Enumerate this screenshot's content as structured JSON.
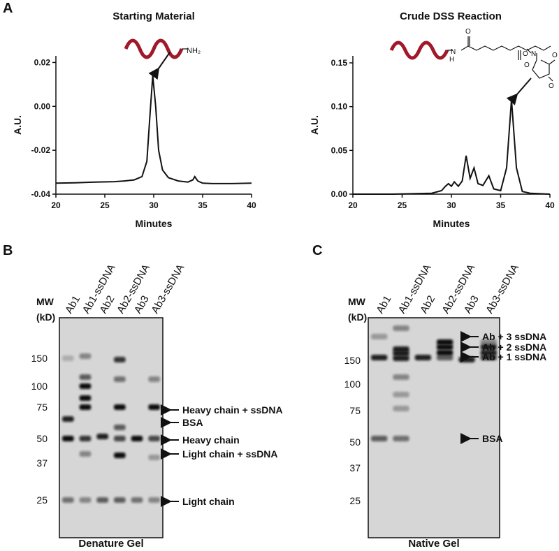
{
  "panels": {
    "a": "A",
    "b": "B",
    "c": "C"
  },
  "chart_data": [
    {
      "type": "line",
      "title": "Starting Material",
      "x_label": "Minutes",
      "y_label": "A.U.",
      "molecule_label": "NH₂",
      "x": [
        20,
        22,
        24,
        26,
        27,
        28,
        28.8,
        29.3,
        29.6,
        29.9,
        30.2,
        30.5,
        30.9,
        31.5,
        32.5,
        33.5,
        34,
        34.2,
        34.5,
        35,
        36,
        38,
        40
      ],
      "values": [
        -0.035,
        -0.0348,
        -0.0345,
        -0.0343,
        -0.034,
        -0.0335,
        -0.032,
        -0.025,
        -0.005,
        0.014,
        0.0,
        -0.02,
        -0.029,
        -0.0325,
        -0.034,
        -0.0345,
        -0.0335,
        -0.032,
        -0.034,
        -0.035,
        -0.0352,
        -0.0352,
        -0.035
      ],
      "color": "#111111",
      "xlim": [
        20,
        40
      ],
      "ylim": [
        -0.04,
        0.023
      ],
      "xticks": [
        20,
        25,
        30,
        35,
        40
      ],
      "yticks": [
        -0.04,
        -0.02,
        {
          "value": 0,
          "label": "0.00"
        },
        0.02
      ]
    },
    {
      "type": "line",
      "title": "Crude DSS Reaction",
      "x_label": "Minutes",
      "y_label": "A.U.",
      "molecule_atoms": [
        "H",
        "N",
        "O",
        "O",
        "O",
        "N",
        "O",
        "O"
      ],
      "x": [
        20,
        24,
        28,
        29,
        29.4,
        29.7,
        30.0,
        30.3,
        30.7,
        31.1,
        31.5,
        31.9,
        32.3,
        32.7,
        33.2,
        33.8,
        34.3,
        35,
        35.6,
        36.1,
        36.6,
        37.2,
        38,
        40
      ],
      "values": [
        0.0,
        0.0,
        0.001,
        0.004,
        0.009,
        0.012,
        0.009,
        0.014,
        0.009,
        0.015,
        0.044,
        0.018,
        0.03,
        0.012,
        0.01,
        0.021,
        0.006,
        0.004,
        0.03,
        0.108,
        0.03,
        0.003,
        0.001,
        0.0
      ],
      "color": "#111111",
      "xlim": [
        20,
        40
      ],
      "ylim": [
        0,
        0.158
      ],
      "xticks": [
        20,
        25,
        30,
        35,
        40
      ],
      "yticks": [
        {
          "value": 0,
          "label": "0.00"
        },
        {
          "value": 0.05,
          "label": "0.05"
        },
        {
          "value": 0.1,
          "label": "0.10"
        },
        0.15
      ]
    }
  ],
  "gels": [
    {
      "caption": "Denature Gel",
      "mw_title": "MW",
      "mw_unit": "(kD)",
      "lanes": [
        "Ab1",
        "Ab1-ssDNA",
        "Ab2",
        "Ab2-ssDNA",
        "Ab3",
        "Ab3-ssDNA"
      ],
      "markers": [
        "150",
        "100",
        "75",
        "50",
        "37",
        "25"
      ],
      "annotations": [
        "Heavy chain + ssDNA",
        "BSA",
        "Heavy chain",
        "Light chain + ssDNA",
        "Light chain"
      ]
    },
    {
      "caption": "Native Gel",
      "mw_title": "MW",
      "mw_unit": "(kD)",
      "lanes": [
        "Ab1",
        "Ab1-ssDNA",
        "Ab2",
        "Ab2-ssDNA",
        "Ab3",
        "Ab3-ssDNA"
      ],
      "markers": [
        "150",
        "100",
        "75",
        "50",
        "37",
        "25"
      ],
      "annotations": [
        "Ab + 3 ssDNA",
        "Ab + 2 ssDNA",
        "Ab + 1 ssDNA",
        "BSA"
      ]
    }
  ]
}
